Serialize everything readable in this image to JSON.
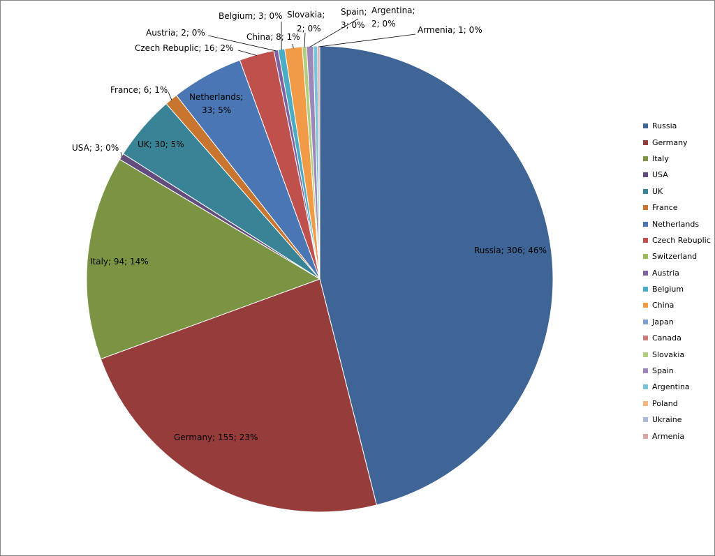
{
  "chart_data": {
    "type": "pie",
    "title": "",
    "legend_position": "right",
    "slices": [
      {
        "name": "Russia",
        "value": 306,
        "percent": "46%",
        "label": "Russia; 306; 46%",
        "color": "#3F6596"
      },
      {
        "name": "Germany",
        "value": 155,
        "percent": "23%",
        "label": "Germany; 155; 23%",
        "color": "#963C3A"
      },
      {
        "name": "Italy",
        "value": 94,
        "percent": "14%",
        "label": "Italy; 94; 14%",
        "color": "#7A9443"
      },
      {
        "name": "USA",
        "value": 3,
        "percent": "0%",
        "label": "USA; 3; 0%",
        "color": "#624C7E"
      },
      {
        "name": "UK",
        "value": 30,
        "percent": "5%",
        "label": "UK; 30; 5%",
        "color": "#388496"
      },
      {
        "name": "France",
        "value": 6,
        "percent": "1%",
        "label": "France; 6; 1%",
        "color": "#C8762F"
      },
      {
        "name": "Netherlands",
        "value": 33,
        "percent": "5%",
        "label_lines": [
          "Netherlands;",
          "33; 5%"
        ],
        "label": "Netherlands; 33; 5%",
        "color": "#4A76B3"
      },
      {
        "name": "Czech Rebuplic",
        "value": 16,
        "percent": "2%",
        "label": "Czech Rebuplic; 16; 2%",
        "color": "#C0504D"
      },
      {
        "name": "Switzerland",
        "value": 0,
        "percent": "",
        "label": "",
        "color": "#9BBB59"
      },
      {
        "name": "Austria",
        "value": 2,
        "percent": "0%",
        "label": "Austria; 2; 0%",
        "color": "#7E62A1"
      },
      {
        "name": "Belgium",
        "value": 3,
        "percent": "0%",
        "label": "Belgium; 3; 0%",
        "color": "#4BACC6"
      },
      {
        "name": "China",
        "value": 8,
        "percent": "1%",
        "label": "China; 8; 1%",
        "color": "#F29B47"
      },
      {
        "name": "Japan",
        "value": 0,
        "percent": "",
        "label": "",
        "color": "#7E9FCA"
      },
      {
        "name": "Canada",
        "value": 0,
        "percent": "",
        "label": "",
        "color": "#CB7D7B"
      },
      {
        "name": "Slovakia",
        "value": 2,
        "percent": "0%",
        "label_lines": [
          "Slovakia;",
          "2; 0%"
        ],
        "label": "Slovakia; 2; 0%",
        "color": "#B2CD7E"
      },
      {
        "name": "Spain",
        "value": 3,
        "percent": "0%",
        "label_lines": [
          "Spain;",
          "3; 0%"
        ],
        "label": "Spain; 3; 0%",
        "color": "#9D86B8"
      },
      {
        "name": "Argentina",
        "value": 2,
        "percent": "0%",
        "label_lines": [
          "Argentina;",
          "2; 0%"
        ],
        "label": "Argentina; 2; 0%",
        "color": "#7AC3D8"
      },
      {
        "name": "Poland",
        "value": 0,
        "percent": "",
        "label": "",
        "color": "#F7B67E"
      },
      {
        "name": "Ukraine",
        "value": 0,
        "percent": "",
        "label": "",
        "color": "#A9BCD9"
      },
      {
        "name": "Armenia",
        "value": 1,
        "percent": "0%",
        "label": "Armenia; 1; 0%",
        "color": "#D9A7A6"
      }
    ]
  }
}
